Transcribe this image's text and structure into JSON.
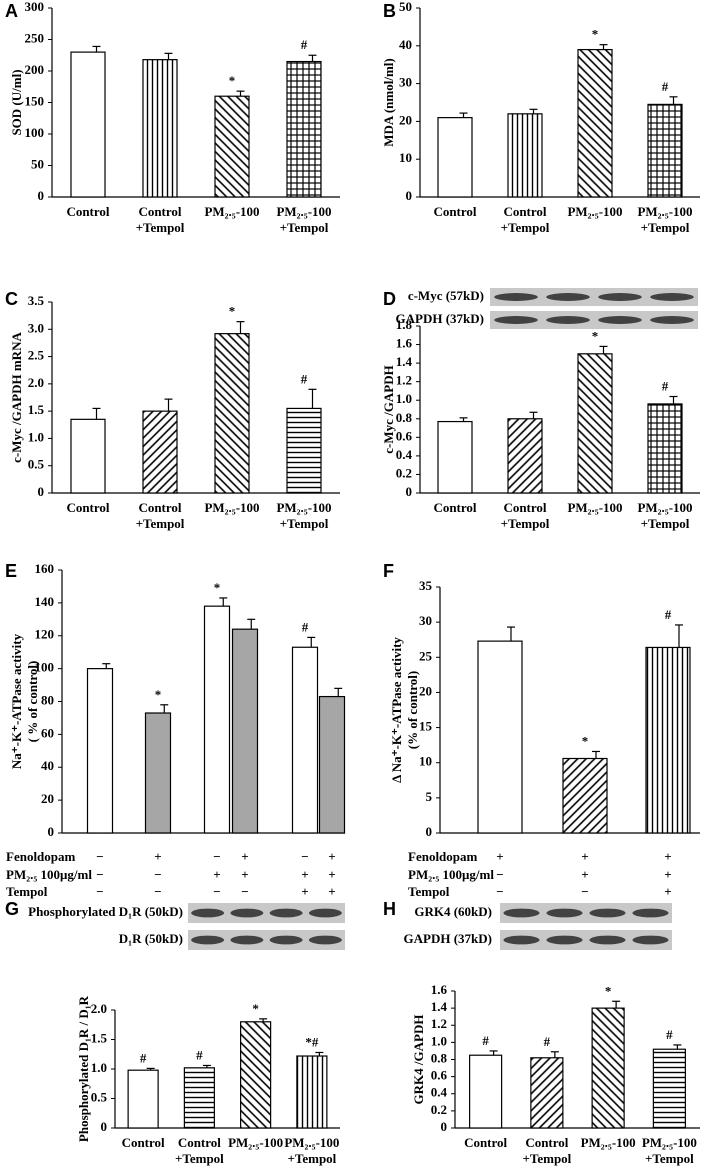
{
  "chart_data": [
    {
      "type": "bar",
      "panel": "A",
      "ylabel": "SOD  (U/ml)",
      "categories": [
        [
          "Control"
        ],
        [
          "Control",
          "+Tempol"
        ],
        [
          "PM₂.₅-100"
        ],
        [
          "PM₂.₅-100",
          "+Tempol"
        ]
      ],
      "values": [
        230,
        218,
        160,
        215
      ],
      "errors": [
        9,
        10,
        8,
        10
      ],
      "annotations": [
        null,
        null,
        "*",
        "#"
      ],
      "patterns": [
        "white",
        "vertical",
        "back-diagonal",
        "grid"
      ],
      "ylim": [
        0,
        300
      ],
      "yticks": [
        0,
        50,
        100,
        150,
        200,
        250,
        300
      ]
    },
    {
      "type": "bar",
      "panel": "B",
      "ylabel": "MDA (nmol/ml)",
      "categories": [
        [
          "Control"
        ],
        [
          "Control",
          "+Tempol"
        ],
        [
          "PM₂.₅-100"
        ],
        [
          "PM₂.₅-100",
          "+Tempol"
        ]
      ],
      "values": [
        21,
        22,
        39,
        24.5
      ],
      "errors": [
        1.2,
        1.2,
        1.3,
        2
      ],
      "annotations": [
        null,
        null,
        "*",
        "#"
      ],
      "patterns": [
        "white",
        "vertical",
        "back-diagonal",
        "grid"
      ],
      "ylim": [
        0,
        50
      ],
      "yticks": [
        0,
        10,
        20,
        30,
        40,
        50
      ]
    },
    {
      "type": "bar",
      "panel": "C",
      "ylabel": "c-Myc /GAPDH mRNA",
      "categories": [
        [
          "Control"
        ],
        [
          "Control",
          "+Tempol"
        ],
        [
          "PM₂.₅-100"
        ],
        [
          "PM₂.₅-100",
          "+Tempol"
        ]
      ],
      "values": [
        1.35,
        1.5,
        2.92,
        1.55
      ],
      "errors": [
        0.2,
        0.22,
        0.22,
        0.35
      ],
      "annotations": [
        null,
        null,
        "*",
        "#"
      ],
      "patterns": [
        "white",
        "forward-diagonal",
        "back-diagonal",
        "horizontal"
      ],
      "ylim": [
        0,
        3.5
      ],
      "yticks": [
        0,
        0.5,
        {
          "value": 1,
          "label": "1.0"
        },
        1.5,
        {
          "value": 2,
          "label": "2.0"
        },
        2.5,
        {
          "value": 3,
          "label": "3.0"
        },
        3.5
      ]
    },
    {
      "type": "bar",
      "panel": "D",
      "ylabel": "c-Myc /GAPDH",
      "blot": [
        "c-Myc (57kD)",
        "GAPDH (37kD)"
      ],
      "categories": [
        [
          "Control"
        ],
        [
          "Control",
          "+Tempol"
        ],
        [
          "PM₂.₅-100"
        ],
        [
          "PM₂.₅-100",
          "+Tempol"
        ]
      ],
      "values": [
        0.77,
        0.8,
        1.5,
        0.96
      ],
      "errors": [
        0.04,
        0.07,
        0.08,
        0.08
      ],
      "annotations": [
        null,
        null,
        "*",
        "#"
      ],
      "patterns": [
        "white",
        "forward-diagonal",
        "back-diagonal",
        "grid"
      ],
      "ylim": [
        0,
        1.8
      ],
      "yticks": [
        0,
        0.2,
        0.4,
        0.6,
        0.8,
        {
          "value": 1,
          "label": "1.0"
        },
        1.2,
        1.4,
        1.6,
        1.8
      ]
    },
    {
      "type": "bar",
      "panel": "E",
      "ylabel": [
        "Na⁺-K⁺-ATPase activity",
        "( % of control)"
      ],
      "values": [
        100,
        73,
        138,
        124,
        113,
        83
      ],
      "errors": [
        3,
        5,
        5,
        6,
        6,
        5
      ],
      "annotations": [
        null,
        "*",
        "*",
        null,
        "#",
        null
      ],
      "patterns": [
        "white",
        "gray",
        "white",
        "gray",
        "white",
        "gray"
      ],
      "conditions": {
        "labels": [
          "Fenoldopam",
          "PM₂.₅ 100μg/ml",
          "Tempol"
        ],
        "rows": [
          [
            "−",
            "+",
            "−",
            "+",
            "−",
            "+"
          ],
          [
            "−",
            "−",
            "+",
            "+",
            "+",
            "+"
          ],
          [
            "−",
            "−",
            "−",
            "−",
            "+",
            "+"
          ]
        ]
      },
      "ylim": [
        0,
        160
      ],
      "yticks": [
        0,
        20,
        40,
        60,
        80,
        100,
        120,
        140,
        160
      ]
    },
    {
      "type": "bar",
      "panel": "F",
      "ylabel": [
        "Δ Na⁺-K⁺-ATPase activity",
        "(% of control)"
      ],
      "values": [
        27.3,
        10.6,
        26.4
      ],
      "errors": [
        2,
        1,
        3.2
      ],
      "annotations": [
        null,
        "*",
        "#"
      ],
      "patterns": [
        "white",
        "forward-diagonal",
        "vertical"
      ],
      "conditions": {
        "labels": [
          "Fenoldopam",
          "PM₂.₅ 100μg/ml",
          "Tempol"
        ],
        "rows": [
          [
            "+",
            "+",
            "+"
          ],
          [
            "−",
            "+",
            "+"
          ],
          [
            "−",
            "−",
            "+"
          ]
        ]
      },
      "ylim": [
        0,
        35
      ],
      "yticks": [
        0,
        5,
        10,
        15,
        20,
        25,
        30,
        35
      ]
    },
    {
      "type": "bar",
      "panel": "G",
      "ylabel": "Phosphorylated D₁R / D₁R",
      "blot": [
        "Phosphorylated D₁R (50kD)",
        "D₁R (50kD)"
      ],
      "categories": [
        [
          "Control"
        ],
        [
          "Control",
          "+Tempol"
        ],
        [
          "PM₂.₅-100"
        ],
        [
          "PM₂.₅-100",
          "+Tempol"
        ]
      ],
      "values": [
        0.98,
        1.02,
        1.8,
        1.22
      ],
      "errors": [
        0.03,
        0.04,
        0.05,
        0.06
      ],
      "annotations": [
        "#",
        "#",
        "*",
        "*#"
      ],
      "patterns": [
        "white",
        "horizontal",
        "back-diagonal",
        "vertical"
      ],
      "ylim": [
        0,
        2
      ],
      "yticks": [
        0,
        0.5,
        {
          "value": 1,
          "label": "1.0"
        },
        1.5,
        {
          "value": 2,
          "label": "2.0"
        }
      ]
    },
    {
      "type": "bar",
      "panel": "H",
      "ylabel": "GRK4 /GAPDH",
      "blot": [
        "GRK4 (60kD)",
        "GAPDH (37kD)"
      ],
      "categories": [
        [
          "Control"
        ],
        [
          "Control",
          "+Tempol"
        ],
        [
          "PM₂.₅-100"
        ],
        [
          "PM₂.₅-100",
          "+Tempol"
        ]
      ],
      "values": [
        0.85,
        0.82,
        1.4,
        0.92
      ],
      "errors": [
        0.05,
        0.07,
        0.08,
        0.05
      ],
      "annotations": [
        "#",
        "#",
        "*",
        "#"
      ],
      "patterns": [
        "white",
        "forward-diagonal",
        "back-diagonal",
        "horizontal"
      ],
      "ylim": [
        0,
        1.6
      ],
      "yticks": [
        0,
        0.2,
        0.4,
        0.6,
        0.8,
        {
          "value": 1,
          "label": "1.0"
        },
        1.2,
        1.4,
        1.6
      ]
    }
  ]
}
